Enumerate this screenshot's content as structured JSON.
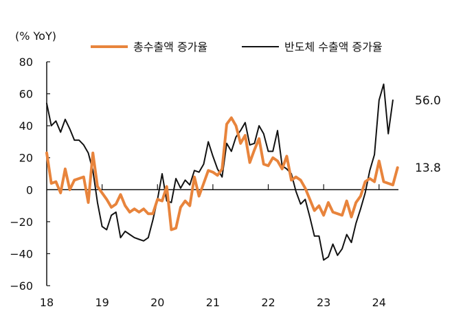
{
  "chart_data": {
    "type": "line",
    "ylabel": "(% YoY)",
    "ylim": [
      -60,
      80
    ],
    "yticks": [
      "80",
      "60",
      "40",
      "20",
      "0",
      "−20",
      "−40",
      "−60"
    ],
    "xlim": [
      2018,
      2024.35
    ],
    "xticks": [
      {
        "pos": 2018,
        "label": "18"
      },
      {
        "pos": 2019,
        "label": "19"
      },
      {
        "pos": 2020,
        "label": "20"
      },
      {
        "pos": 2021,
        "label": "21"
      },
      {
        "pos": 2022,
        "label": "22"
      },
      {
        "pos": 2023,
        "label": "23"
      },
      {
        "pos": 2024,
        "label": "24"
      }
    ],
    "series": [
      {
        "name": "총수출액 증가율",
        "color": "#E8843C",
        "end_label": "13.8",
        "x_start": 2018.0,
        "x_step": 0.0833333,
        "values": [
          23,
          4,
          5,
          -2,
          13,
          0,
          6,
          7,
          8,
          -8,
          23,
          2,
          -2,
          -6,
          -11,
          -9,
          -3,
          -10,
          -14,
          -12,
          -14,
          -12,
          -15,
          -15,
          -6,
          -7,
          2,
          -25,
          -24,
          -11,
          -7,
          -10,
          8,
          -4,
          4,
          12,
          11,
          9,
          13,
          41,
          45,
          40,
          29,
          34,
          17,
          25,
          32,
          16,
          15,
          20,
          18,
          13,
          21,
          6,
          8,
          6,
          1,
          -6,
          -13,
          -10,
          -16,
          -8,
          -14,
          -15,
          -16,
          -7,
          -17,
          -8,
          -4,
          5,
          7,
          5,
          18,
          5,
          4,
          3,
          13.8
        ]
      },
      {
        "name": "반도체 수출액 증가율",
        "color": "#111111",
        "end_label": "56.0",
        "x_start": 2018.0,
        "x_step": 0.0833333,
        "values": [
          54,
          40,
          43,
          36,
          44,
          38,
          31,
          31,
          28,
          23,
          12,
          -8,
          -23,
          -25,
          -16,
          -14,
          -30,
          -26,
          -28,
          -30,
          -31,
          -32,
          -30,
          -19,
          -6,
          10,
          -7,
          -8,
          7,
          1,
          6,
          3,
          12,
          11,
          16,
          30,
          21,
          13,
          8,
          29,
          24,
          33,
          37,
          42,
          28,
          29,
          40,
          35,
          24,
          24,
          37,
          15,
          13,
          10,
          -1,
          -9,
          -6,
          -17,
          -29,
          -29,
          -44,
          -42,
          -34,
          -41,
          -37,
          -28,
          -33,
          -21,
          -12,
          -2,
          12,
          22,
          56,
          66,
          35,
          56
        ]
      }
    ]
  }
}
